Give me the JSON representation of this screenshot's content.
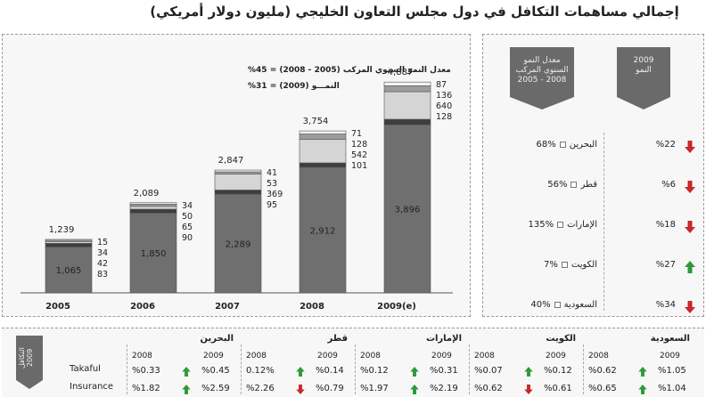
{
  "title": "إجمالي مساهمات التكافل في دول مجلس التعاون الخليجي (مليون دولار أمريكي)",
  "colors": {
    "up": "#2e9a3a",
    "down": "#c8282b",
    "tab": "#6a6a6a"
  },
  "chart_data": {
    "type": "bar",
    "stacked": true,
    "categories": [
      "2005",
      "2006",
      "2007",
      "2008",
      "2009(e)"
    ],
    "totals": [
      "1,239",
      "2,089",
      "2,847",
      "3,754",
      "4,887"
    ],
    "total_values": [
      1239,
      2089,
      2847,
      3754,
      4887
    ],
    "series": [
      {
        "values": [
          1065,
          1850,
          2289,
          2912,
          3896
        ],
        "labels": [
          "1,065",
          "1,850",
          "2,289",
          "2,912",
          "3,896"
        ],
        "color": "#6f6f6f"
      },
      {
        "values": [
          83,
          90,
          95,
          101,
          128
        ],
        "labels": [
          "83",
          "90",
          "95",
          "101",
          "128"
        ],
        "color": "#3e3e3e"
      },
      {
        "values": [
          42,
          65,
          369,
          542,
          640
        ],
        "labels": [
          "42",
          "65",
          "369",
          "542",
          "640"
        ],
        "color": "#d5d5d5"
      },
      {
        "values": [
          34,
          50,
          53,
          128,
          136
        ],
        "labels": [
          "34",
          "50",
          "53",
          "128",
          "136"
        ],
        "color": "#9c9c9c"
      },
      {
        "values": [
          15,
          34,
          41,
          71,
          87
        ],
        "labels": [
          "15",
          "34",
          "41",
          "71",
          "87"
        ],
        "color": "#f2f2f2"
      }
    ],
    "ylim": [
      0,
      5200
    ],
    "annotations": [
      "معدل النمو السنوي المركب (2005 - 2008) = 45%",
      "النمـــو (2009) = 31%"
    ]
  },
  "growth_panel": {
    "header_growth": "2009\nالنمو",
    "header_cagr": "معدل النمو\nالسنوي المركب\n2008 - 2005",
    "rows": [
      {
        "country": "البحرين",
        "cagr": "%68",
        "growth": "%22",
        "dir": "down"
      },
      {
        "country": "قطر",
        "cagr": "%56",
        "growth": "%6",
        "dir": "down"
      },
      {
        "country": "الإمارات",
        "cagr": "%135",
        "growth": "%18",
        "dir": "down"
      },
      {
        "country": "الكويت",
        "cagr": "%7",
        "growth": "%27",
        "dir": "up"
      },
      {
        "country": "السعودية",
        "cagr": "%40",
        "growth": "%34",
        "dir": "down"
      }
    ]
  },
  "bottom": {
    "side_tab": "التكافل 2009",
    "row_labels": [
      "Takaful",
      "Insurance"
    ],
    "year_a": "2008",
    "year_b": "2009",
    "countries": [
      {
        "name": "البحرين",
        "takaful_2008": "%0.33",
        "takaful_dir": "up",
        "takaful_2009": "%0.45",
        "ins_2008": "%1.82",
        "ins_dir": "up",
        "ins_2009": "%2.59"
      },
      {
        "name": "قطر",
        "takaful_2008": "0.12%",
        "takaful_dir": "up",
        "takaful_2009": "%0.14",
        "ins_2008": "%2.26",
        "ins_dir": "down",
        "ins_2009": "%0.79"
      },
      {
        "name": "الإمارات",
        "takaful_2008": "%0.12",
        "takaful_dir": "up",
        "takaful_2009": "%0.31",
        "ins_2008": "%1.97",
        "ins_dir": "up",
        "ins_2009": "%2.19"
      },
      {
        "name": "الكويت",
        "takaful_2008": "%0.07",
        "takaful_dir": "up",
        "takaful_2009": "%0.12",
        "ins_2008": "%0.62",
        "ins_dir": "down",
        "ins_2009": "%0.61"
      },
      {
        "name": "السعودية",
        "takaful_2008": "%0.62",
        "takaful_dir": "up",
        "takaful_2009": "%1.05",
        "ins_2008": "%0.65",
        "ins_dir": "up",
        "ins_2009": "%1.04"
      }
    ]
  }
}
